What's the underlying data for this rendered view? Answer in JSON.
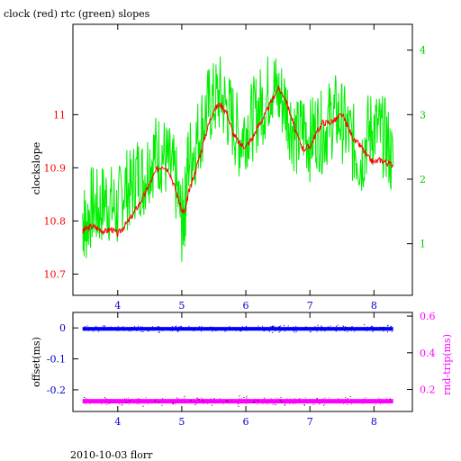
{
  "title": "clock (red) rtc (green) slopes",
  "footer": "2010-10-03 florr",
  "colors": {
    "clock": "#ff0000",
    "rtc": "#00ee00",
    "offset": "#0000ff",
    "rndtrip": "#ff00ff",
    "axis_blue": "#0000cc",
    "axis_magenta": "#ff00ff",
    "axis_red": "#ff0000",
    "axis_green": "#00cc00"
  },
  "chart_data": [
    {
      "type": "line",
      "title": "clock (red) rtc (green) slopes",
      "ylabel": "clockslope",
      "xlim": [
        3.3,
        8.6
      ],
      "ylim_left": [
        10.66,
        11.17
      ],
      "ylim_right": [
        0.2,
        4.4
      ],
      "xticks": [
        "4",
        "5",
        "6",
        "7",
        "8"
      ],
      "yticks_left": [
        "10.7",
        "10.8",
        "10.9",
        "11"
      ],
      "yticks_right": [
        "1",
        "2",
        "3",
        "4"
      ],
      "series": [
        {
          "name": "clock",
          "axis": "left",
          "x": [
            3.45,
            3.5,
            3.6,
            3.7,
            3.8,
            3.9,
            4.0,
            4.1,
            4.2,
            4.3,
            4.4,
            4.5,
            4.6,
            4.7,
            4.8,
            4.9,
            5.0,
            5.05,
            5.1,
            5.2,
            5.3,
            5.4,
            5.5,
            5.6,
            5.7,
            5.8,
            5.9,
            6.0,
            6.1,
            6.2,
            6.3,
            6.4,
            6.5,
            6.6,
            6.7,
            6.8,
            6.9,
            7.0,
            7.1,
            7.2,
            7.3,
            7.4,
            7.5,
            7.6,
            7.7,
            7.8,
            7.9,
            8.0,
            8.1,
            8.2,
            8.3
          ],
          "y": [
            10.78,
            10.785,
            10.79,
            10.785,
            10.78,
            10.785,
            10.775,
            10.79,
            10.805,
            10.825,
            10.845,
            10.87,
            10.895,
            10.905,
            10.895,
            10.86,
            10.82,
            10.815,
            10.85,
            10.89,
            10.93,
            10.975,
            11.01,
            11.02,
            11.005,
            10.965,
            10.945,
            10.94,
            10.955,
            10.98,
            11.0,
            11.025,
            11.05,
            11.035,
            11.0,
            10.96,
            10.935,
            10.94,
            10.965,
            10.985,
            10.985,
            10.99,
            11.0,
            10.975,
            10.95,
            10.94,
            10.92,
            10.91,
            10.915,
            10.91,
            10.905
          ]
        },
        {
          "name": "rtc",
          "axis": "right",
          "x": [
            3.45,
            3.5,
            3.6,
            3.7,
            3.8,
            3.9,
            4.0,
            4.1,
            4.2,
            4.3,
            4.4,
            4.5,
            4.6,
            4.7,
            4.8,
            4.9,
            5.0,
            5.05,
            5.1,
            5.2,
            5.3,
            5.4,
            5.5,
            5.6,
            5.7,
            5.8,
            5.9,
            6.0,
            6.1,
            6.2,
            6.3,
            6.4,
            6.5,
            6.6,
            6.7,
            6.8,
            6.9,
            7.0,
            7.1,
            7.2,
            7.3,
            7.4,
            7.5,
            7.6,
            7.7,
            7.8,
            7.9,
            8.0,
            8.1,
            8.2,
            8.3
          ],
          "y": [
            1.4,
            1.3,
            1.6,
            1.5,
            1.7,
            1.6,
            1.5,
            1.9,
            1.8,
            2.1,
            2.0,
            2.3,
            2.4,
            2.4,
            2.2,
            2.0,
            1.3,
            1.6,
            2.3,
            2.5,
            2.8,
            3.1,
            3.2,
            3.3,
            3.1,
            2.9,
            2.6,
            2.8,
            2.9,
            3.1,
            3.2,
            3.5,
            3.3,
            3.2,
            2.9,
            2.6,
            2.8,
            2.6,
            2.8,
            2.7,
            2.9,
            3.0,
            2.9,
            2.7,
            2.5,
            2.3,
            2.7,
            2.8,
            2.7,
            2.6,
            2.2
          ]
        }
      ]
    },
    {
      "type": "scatter",
      "xlim": [
        3.3,
        8.6
      ],
      "ylim_left": [
        -0.27,
        0.05
      ],
      "ylim_right": [
        0.08,
        0.62
      ],
      "ylabel_left": "offset(ms)",
      "ylabel_right": "rnd-trip(ms)",
      "xticks": [
        "4",
        "5",
        "6",
        "7",
        "8"
      ],
      "yticks_left": [
        "0",
        "-0.1",
        "-0.2"
      ],
      "yticks_right": [
        "0.2",
        "0.4",
        "0.6"
      ],
      "series": [
        {
          "name": "offset",
          "axis": "left",
          "x_range": [
            3.45,
            8.3
          ],
          "y_center": -0.003,
          "y_spread": 0.006
        },
        {
          "name": "rnd-trip",
          "axis": "right",
          "x_range": [
            3.45,
            8.3
          ],
          "y_center": 0.136,
          "y_spread": 0.012
        }
      ]
    }
  ]
}
